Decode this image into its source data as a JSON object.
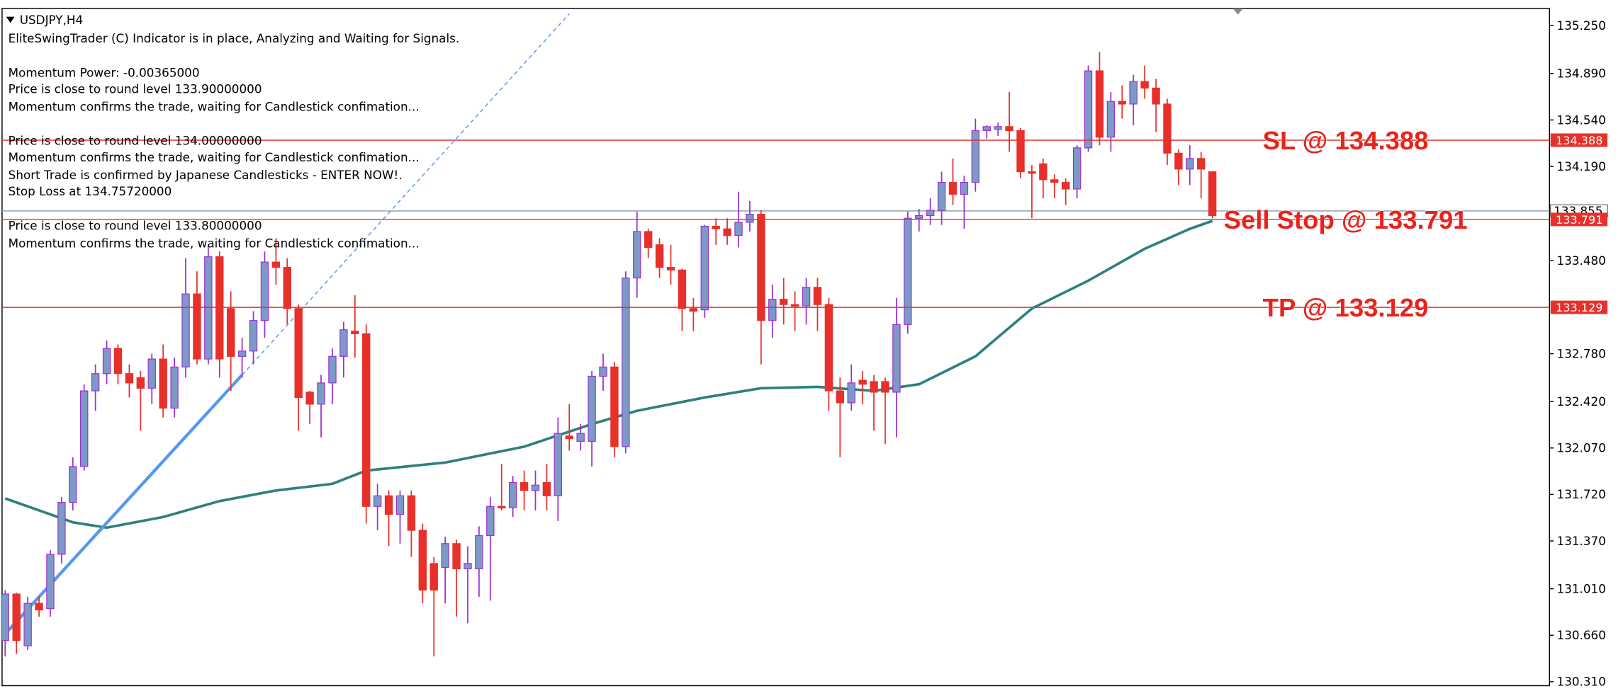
{
  "chart_data": {
    "type": "candlestick",
    "title": "USDJPY,H4",
    "messages": [
      "EliteSwingTrader (C) Indicator is in place, Analyzing and Waiting for Signals.",
      "Momentum Power: -0.00365000",
      "Price is close to round level 133.90000000",
      "Momentum confirms the trade, waiting for Candlestick confimation...",
      "Price is close to round level 134.00000000",
      "Momentum confirms the trade, waiting for Candlestick confimation...",
      "Short Trade is confirmed by Japanese Candlesticks - ENTER NOW!.",
      "Stop Loss at 134.75720000",
      "Price is close to round level 133.80000000",
      "Momentum confirms the trade, waiting for Candlestick confimation..."
    ],
    "open": [
      130.62,
      130.97,
      130.58,
      130.9,
      130.86,
      131.27,
      131.66,
      131.93,
      132.5,
      132.63,
      132.82,
      132.63,
      132.6,
      132.52,
      132.74,
      132.37,
      132.68,
      133.23,
      132.74,
      133.51,
      133.12,
      132.76,
      132.8,
      133.03,
      133.47,
      133.43,
      133.12,
      132.49,
      132.4,
      132.56,
      132.76,
      132.95,
      132.93,
      131.63,
      131.71,
      131.57,
      131.71,
      131.45,
      131.2,
      131.17,
      131.35,
      131.16,
      131.16,
      131.41,
      131.63,
      131.62,
      131.81,
      131.75,
      131.81,
      131.71,
      132.16,
      132.12,
      132.12,
      132.61,
      132.68,
      132.08,
      133.35,
      133.7,
      133.6,
      133.43,
      133.41,
      133.12,
      133.11,
      133.74,
      133.72,
      133.67,
      133.77,
      133.83,
      133.03,
      133.19,
      133.15,
      133.14,
      133.28,
      133.15,
      132.5,
      132.41,
      132.58,
      132.57,
      132.57,
      132.49,
      133.0,
      133.8,
      133.82,
      133.86,
      134.07,
      133.98,
      134.07,
      134.46,
      134.47,
      134.49,
      134.46,
      134.15,
      134.21,
      134.09,
      134.07,
      134.02,
      134.33,
      134.91,
      134.41,
      134.68,
      134.66,
      134.83,
      134.78,
      134.66,
      134.29,
      134.17,
      134.25,
      134.15
    ],
    "high": [
      131.0,
      130.98,
      130.95,
      130.95,
      131.3,
      131.7,
      132.0,
      132.55,
      132.7,
      132.88,
      132.85,
      132.7,
      132.65,
      132.78,
      132.85,
      132.75,
      133.5,
      133.4,
      133.6,
      133.55,
      133.25,
      132.9,
      133.1,
      133.55,
      133.65,
      133.5,
      133.15,
      132.5,
      132.62,
      132.82,
      133.02,
      133.22,
      133.0,
      131.8,
      131.75,
      131.75,
      131.75,
      131.5,
      131.25,
      131.4,
      131.38,
      131.33,
      131.48,
      131.7,
      131.95,
      131.86,
      131.9,
      131.9,
      131.95,
      132.3,
      132.4,
      132.25,
      132.65,
      132.78,
      132.72,
      133.4,
      133.85,
      133.72,
      133.65,
      133.6,
      133.42,
      133.2,
      133.75,
      133.8,
      133.8,
      134.0,
      133.93,
      133.86,
      133.3,
      133.35,
      133.25,
      133.35,
      133.35,
      133.2,
      132.6,
      132.7,
      132.65,
      132.62,
      132.6,
      133.2,
      133.85,
      133.87,
      133.95,
      134.15,
      134.25,
      134.12,
      134.55,
      134.5,
      134.52,
      134.75,
      134.48,
      134.2,
      134.25,
      134.13,
      134.1,
      134.35,
      134.95,
      135.05,
      134.75,
      134.8,
      134.88,
      134.95,
      134.85,
      134.7,
      134.32,
      134.35,
      134.3,
      134.15
    ],
    "low": [
      130.5,
      130.52,
      130.55,
      130.8,
      130.8,
      131.2,
      131.6,
      131.9,
      132.35,
      132.55,
      132.55,
      132.45,
      132.2,
      132.4,
      132.3,
      132.3,
      132.6,
      132.7,
      132.7,
      132.6,
      132.5,
      132.6,
      132.7,
      132.9,
      133.3,
      133.0,
      132.2,
      132.25,
      132.15,
      132.4,
      132.6,
      132.75,
      131.5,
      131.45,
      131.33,
      131.35,
      131.25,
      130.9,
      130.5,
      130.9,
      130.8,
      130.75,
      130.95,
      130.92,
      131.6,
      131.55,
      131.6,
      131.6,
      131.6,
      131.52,
      132.05,
      132.05,
      131.93,
      132.5,
      132.0,
      132.03,
      133.2,
      133.5,
      133.35,
      133.3,
      132.95,
      132.95,
      133.05,
      133.6,
      133.6,
      133.58,
      133.7,
      132.7,
      132.9,
      133.0,
      132.95,
      133.0,
      132.95,
      132.35,
      132.0,
      132.35,
      132.4,
      132.2,
      132.1,
      132.15,
      132.93,
      133.7,
      133.75,
      133.75,
      133.9,
      133.72,
      134.0,
      134.4,
      134.42,
      134.3,
      134.1,
      133.8,
      133.95,
      133.95,
      133.9,
      133.95,
      134.3,
      134.35,
      134.3,
      134.55,
      134.5,
      134.7,
      134.45,
      134.2,
      134.05,
      134.05,
      133.95,
      133.8
    ],
    "close": [
      130.97,
      130.62,
      130.9,
      130.85,
      131.27,
      131.66,
      131.93,
      132.5,
      132.63,
      132.82,
      132.63,
      132.56,
      132.52,
      132.74,
      132.37,
      132.68,
      133.23,
      132.74,
      133.51,
      132.74,
      132.76,
      132.8,
      133.03,
      133.47,
      133.43,
      133.12,
      132.45,
      132.4,
      132.56,
      132.76,
      132.96,
      132.93,
      131.63,
      131.71,
      131.57,
      131.71,
      131.45,
      131.0,
      131.0,
      131.35,
      131.16,
      131.2,
      131.41,
      131.63,
      131.62,
      131.81,
      131.75,
      131.79,
      131.71,
      132.18,
      132.14,
      132.18,
      132.61,
      132.68,
      132.08,
      133.35,
      133.7,
      133.58,
      133.43,
      133.41,
      133.12,
      133.1,
      133.74,
      133.72,
      133.67,
      133.77,
      133.83,
      133.03,
      133.19,
      133.15,
      133.14,
      133.28,
      133.15,
      132.5,
      132.41,
      132.56,
      132.55,
      132.49,
      132.49,
      133.0,
      133.8,
      133.82,
      133.86,
      134.07,
      133.98,
      134.07,
      134.46,
      134.49,
      134.49,
      134.46,
      134.15,
      134.14,
      134.09,
      134.07,
      134.02,
      134.33,
      134.91,
      134.41,
      134.68,
      134.66,
      134.83,
      134.78,
      134.66,
      134.29,
      134.17,
      134.25,
      134.17,
      133.82
    ],
    "up_color": "#7b9ac6",
    "up_wick": "#9b30d0",
    "down_color": "#e8302a",
    "moving_average": {
      "color": "#2e8080",
      "x": [
        1,
        7,
        10,
        15,
        20,
        25,
        30,
        33,
        40,
        47,
        53,
        57,
        63,
        68,
        73,
        78,
        82,
        87,
        92,
        97,
        102,
        106,
        108
      ],
      "values": [
        131.69,
        131.51,
        131.47,
        131.55,
        131.67,
        131.75,
        131.8,
        131.9,
        131.96,
        132.08,
        132.25,
        132.35,
        132.45,
        132.52,
        132.53,
        132.5,
        132.55,
        132.76,
        133.12,
        133.33,
        133.57,
        133.72,
        133.78
      ]
    },
    "trendline": {
      "color": "#5599ee",
      "x": [
        1,
        22
      ],
      "values": [
        130.67,
        132.62
      ],
      "extension_x": [
        22,
        51
      ],
      "extension_values": [
        132.62,
        135.34
      ]
    },
    "levels": [
      {
        "text": "SL @ 134.388",
        "value": 134.388,
        "color": "#e8302a"
      },
      {
        "text": "Sell Stop @ 133.791",
        "value": 133.791,
        "color": "#e8302a"
      },
      {
        "text": "TP @ 133.129",
        "value": 133.129,
        "color": "#e8302a"
      }
    ],
    "current_price": {
      "value": 133.855,
      "color": "#8a9aa8"
    },
    "ylim": [
      130.28,
      135.38
    ],
    "yticks": [
      {
        "value": 135.25,
        "label": "135.250"
      },
      {
        "value": 134.89,
        "label": "134.890"
      },
      {
        "value": 134.54,
        "label": "134.540"
      },
      {
        "value": 134.19,
        "label": "134.190"
      },
      {
        "value": 133.48,
        "label": "133.480"
      },
      {
        "value": 132.78,
        "label": "132.780"
      },
      {
        "value": 132.42,
        "label": "132.420"
      },
      {
        "value": 132.07,
        "label": "132.070"
      },
      {
        "value": 131.72,
        "label": "131.720"
      },
      {
        "value": 131.37,
        "label": "131.370"
      },
      {
        "value": 131.01,
        "label": "131.010"
      },
      {
        "value": 130.66,
        "label": "130.660"
      },
      {
        "value": 130.31,
        "label": "130.310"
      }
    ]
  }
}
